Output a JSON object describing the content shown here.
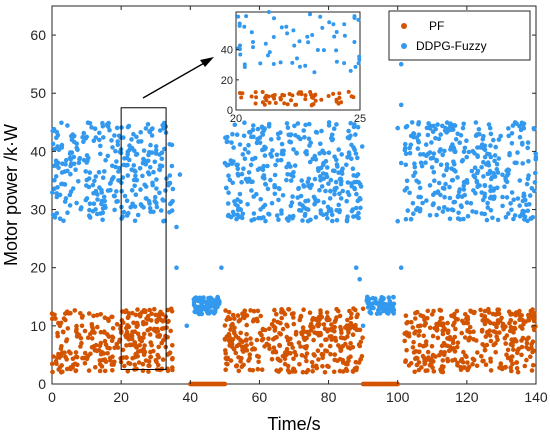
{
  "chart_data": {
    "type": "scatter",
    "xlabel": "Time/s",
    "ylabel": "Motor power /k·W",
    "xlim": [
      0,
      140
    ],
    "ylim": [
      0,
      65
    ],
    "xticks": [
      0,
      20,
      40,
      60,
      80,
      100,
      120,
      140
    ],
    "yticks": [
      0,
      10,
      20,
      30,
      40,
      50,
      60
    ],
    "legend_position": "top-right",
    "series": [
      {
        "name": "PF",
        "color": "#d35400",
        "segments": [
          {
            "x": [
              0,
              35
            ],
            "y": [
              2,
              13
            ]
          },
          {
            "x": [
              50,
              90
            ],
            "y": [
              2,
              13
            ]
          },
          {
            "x": [
              102,
              140
            ],
            "y": [
              2,
              13
            ]
          }
        ],
        "flat_points": [
          {
            "x": [
              40,
              50
            ],
            "y": 0
          },
          {
            "x": [
              90,
              100
            ],
            "y": 0
          }
        ]
      },
      {
        "name": "DDPG-Fuzzy",
        "color": "#3399ee",
        "segments": [
          {
            "x": [
              0,
              35
            ],
            "y": [
              28,
              45
            ]
          },
          {
            "x": [
              50,
              90
            ],
            "y": [
              28,
              45
            ]
          },
          {
            "x": [
              102,
              140
            ],
            "y": [
              28,
              45
            ]
          },
          {
            "x": [
              41,
              49
            ],
            "y": [
              12,
              15
            ]
          },
          {
            "x": [
              91,
              99
            ],
            "y": [
              12,
              15
            ]
          }
        ],
        "spike_points": [
          {
            "x": 37,
            "y": 36
          },
          {
            "x": 36,
            "y": 27
          },
          {
            "x": 36,
            "y": 20
          },
          {
            "x": 39,
            "y": 10
          },
          {
            "x": 50,
            "y": 38
          },
          {
            "x": 49,
            "y": 20
          },
          {
            "x": 87,
            "y": 30
          },
          {
            "x": 88,
            "y": 20
          },
          {
            "x": 89,
            "y": 18
          },
          {
            "x": 100,
            "y": 61
          },
          {
            "x": 101,
            "y": 55
          },
          {
            "x": 101,
            "y": 48
          },
          {
            "x": 100,
            "y": 44
          },
          {
            "x": 101,
            "y": 38
          },
          {
            "x": 100,
            "y": 28
          },
          {
            "x": 101,
            "y": 20
          },
          {
            "x": 90,
            "y": 10
          }
        ]
      }
    ],
    "highlight_box": {
      "x": [
        20,
        33
      ],
      "y": [
        2.5,
        47.5
      ]
    },
    "inset": {
      "xlim": [
        20,
        25
      ],
      "ylim": [
        0,
        65
      ],
      "xticks": [
        20,
        25
      ],
      "yticks": [
        0,
        20,
        40
      ],
      "series_ranges": {
        "PF": [
          3,
          12
        ],
        "DDPG-Fuzzy": [
          25,
          65
        ]
      }
    }
  }
}
